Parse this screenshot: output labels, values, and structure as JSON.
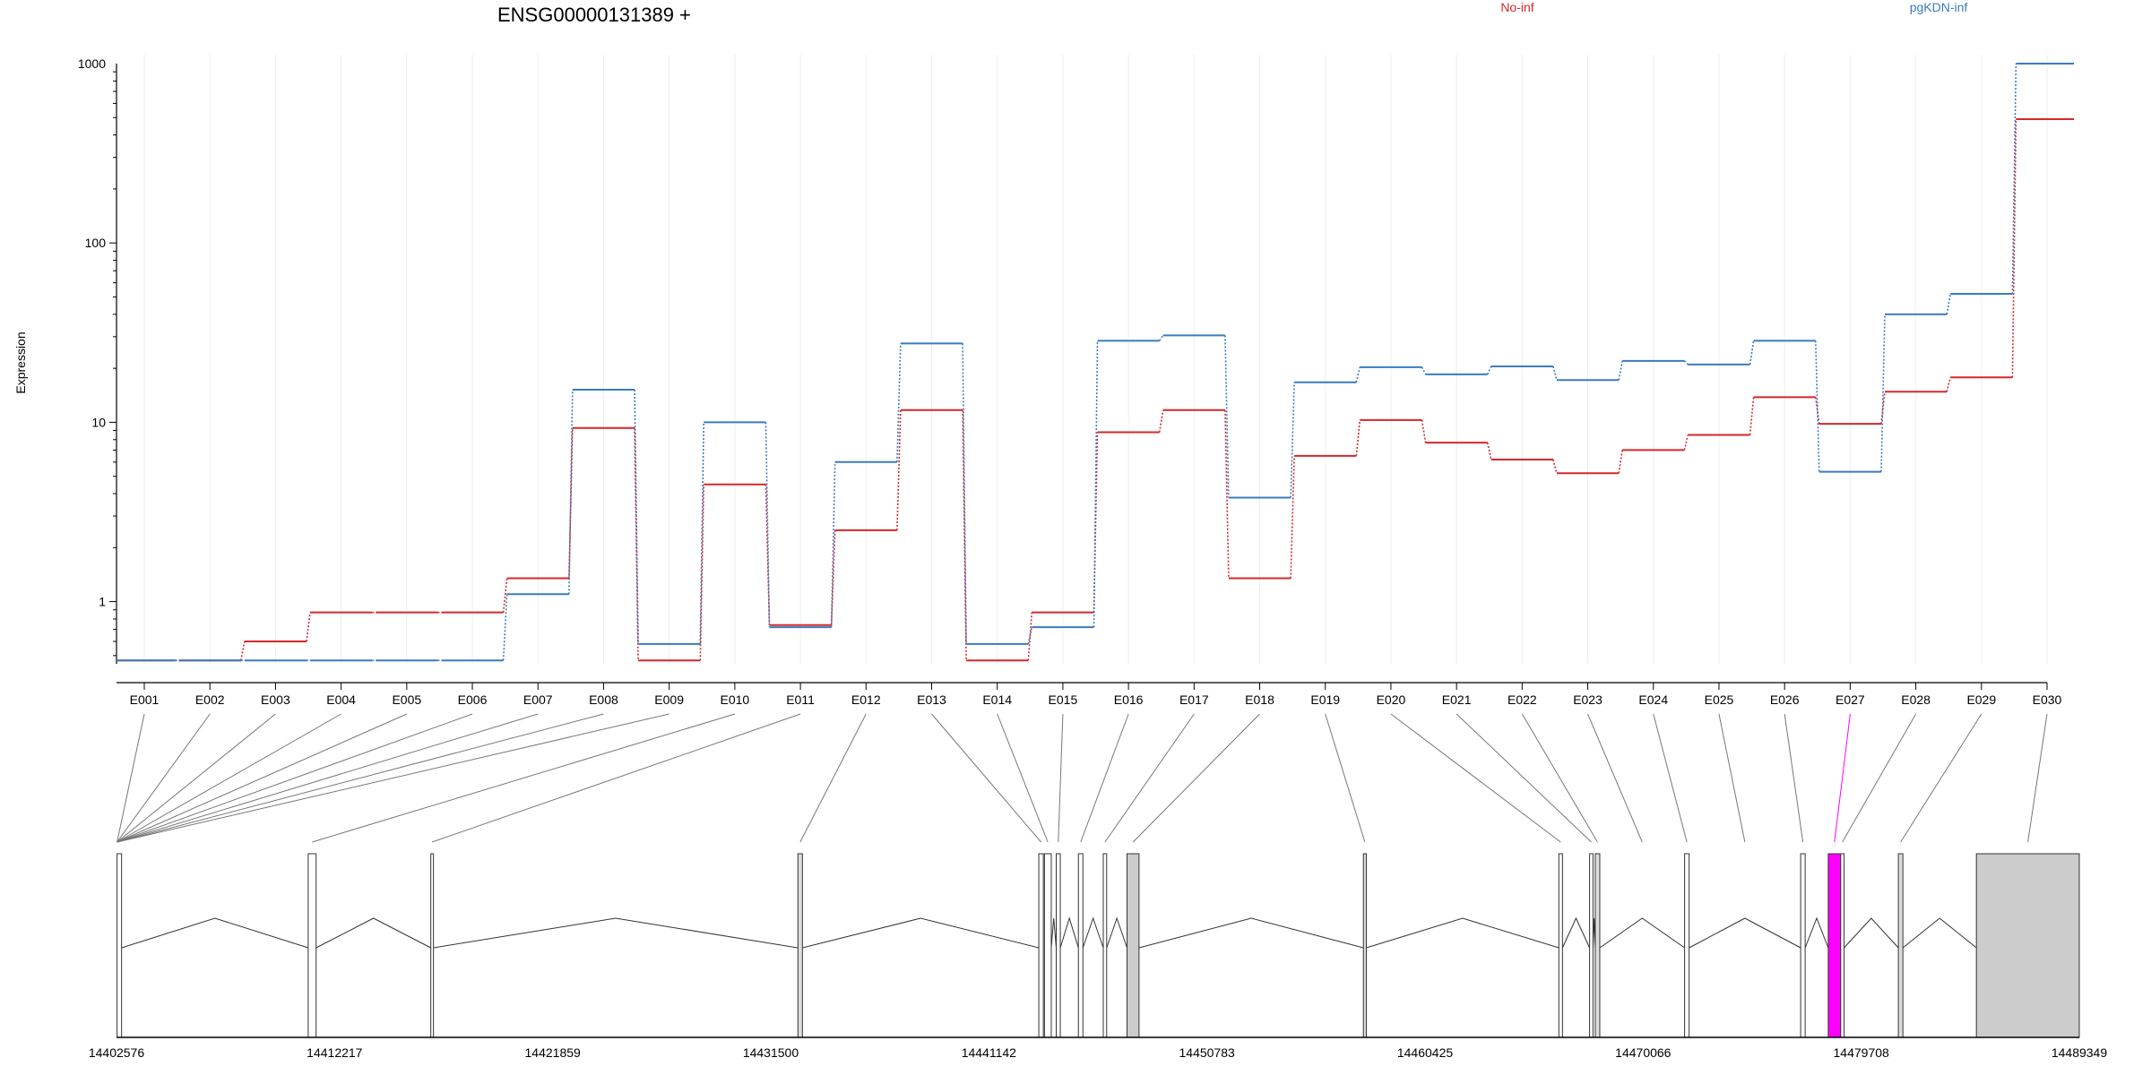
{
  "chart_data": {
    "type": "line",
    "title": "ENSG00000131389 +",
    "ylabel": "Expression",
    "yscale": "log",
    "ylim": [
      0.45,
      1000
    ],
    "ytick_labels": [
      "1",
      "10",
      "100",
      "1000"
    ],
    "ytick_values": [
      1,
      10,
      100,
      1000
    ],
    "categories": [
      "E001",
      "E002",
      "E003",
      "E004",
      "E005",
      "E006",
      "E007",
      "E008",
      "E009",
      "E010",
      "E011",
      "E012",
      "E013",
      "E014",
      "E015",
      "E016",
      "E017",
      "E018",
      "E019",
      "E020",
      "E021",
      "E022",
      "E023",
      "E024",
      "E025",
      "E026",
      "E027",
      "E028",
      "E029",
      "E030"
    ],
    "series": [
      {
        "name": "No-inf",
        "color": "#d62728",
        "values": [
          0.47,
          0.47,
          0.6,
          0.87,
          0.87,
          0.87,
          1.35,
          9.3,
          0.47,
          4.5,
          0.74,
          2.5,
          11.7,
          0.47,
          0.87,
          8.8,
          11.7,
          1.35,
          6.5,
          10.3,
          7.7,
          6.2,
          5.2,
          7.0,
          8.5,
          13.8,
          9.8,
          14.8,
          17.8,
          490
        ]
      },
      {
        "name": "pgKDN-inf",
        "color": "#3a7bbf",
        "values": [
          0.47,
          0.47,
          0.47,
          0.47,
          0.47,
          0.47,
          1.1,
          15.2,
          0.58,
          10.0,
          0.72,
          6.0,
          27.5,
          0.58,
          0.72,
          28.5,
          30.5,
          3.8,
          16.7,
          20.3,
          18.5,
          20.5,
          17.2,
          22.0,
          21.0,
          28.5,
          5.3,
          40.0,
          52.0,
          1000
        ]
      }
    ],
    "highlight_exon": "E027",
    "highlight_color": "#ff00ff",
    "genome_axis": {
      "start": 14402576,
      "end": 14489349,
      "tick_labels": [
        "14402576",
        "14412217",
        "14421859",
        "14431500",
        "14441142",
        "14450783",
        "14460425",
        "14470066",
        "14479708",
        "14489349"
      ],
      "tick_values": [
        14402576,
        14412217,
        14421859,
        14431500,
        14441142,
        14450783,
        14460425,
        14470066,
        14479708,
        14489349
      ]
    },
    "gene_model": {
      "exons": [
        {
          "id": "E001",
          "start": 14402600,
          "end": 14402800,
          "fill": "#ffffff"
        },
        {
          "id": "E010",
          "start": 14411050,
          "end": 14411400,
          "fill": "#ffffff"
        },
        {
          "id": "E011",
          "start": 14416470,
          "end": 14416580,
          "fill": "#ffffff"
        },
        {
          "id": "E012",
          "start": 14432700,
          "end": 14432900,
          "fill": "#dddddd"
        },
        {
          "id": "E013",
          "start": 14443350,
          "end": 14443550,
          "fill": "#ffffff"
        },
        {
          "id": "E014",
          "start": 14443600,
          "end": 14443900,
          "fill": "#ffffff"
        },
        {
          "id": "E015",
          "start": 14444120,
          "end": 14444300,
          "fill": "#ffffff"
        },
        {
          "id": "E016",
          "start": 14445100,
          "end": 14445300,
          "fill": "#ffffff"
        },
        {
          "id": "E017",
          "start": 14446200,
          "end": 14446350,
          "fill": "#ffffff"
        },
        {
          "id": "E018",
          "start": 14447250,
          "end": 14447780,
          "fill": "#cccccc"
        },
        {
          "id": "E019",
          "start": 14457700,
          "end": 14457830,
          "fill": "#dddddd"
        },
        {
          "id": "E020",
          "start": 14466340,
          "end": 14466500,
          "fill": "#ffffff"
        },
        {
          "id": "E021",
          "start": 14467700,
          "end": 14467850,
          "fill": "#ffffff"
        },
        {
          "id": "E022",
          "start": 14467950,
          "end": 14468150,
          "fill": "#dddddd"
        },
        {
          "id": "E024",
          "start": 14471900,
          "end": 14472100,
          "fill": "#ffffff"
        },
        {
          "id": "E026",
          "start": 14477030,
          "end": 14477230,
          "fill": "#ffffff"
        },
        {
          "id": "E027",
          "start": 14478250,
          "end": 14478800,
          "fill": "#ff00ff"
        },
        {
          "id": "E028",
          "start": 14478800,
          "end": 14478950,
          "fill": "#ffffff"
        },
        {
          "id": "E029",
          "start": 14481350,
          "end": 14481550,
          "fill": "#dddddd"
        },
        {
          "id": "E030",
          "start": 14484800,
          "end": 14489349,
          "fill": "#cccccc"
        }
      ]
    },
    "legend": [
      {
        "name": "No-inf",
        "color": "#d62728",
        "placement": "top"
      },
      {
        "name": "pgKDN-inf",
        "color": "#3a7bbf",
        "placement": "top-right"
      }
    ],
    "grid": true
  }
}
